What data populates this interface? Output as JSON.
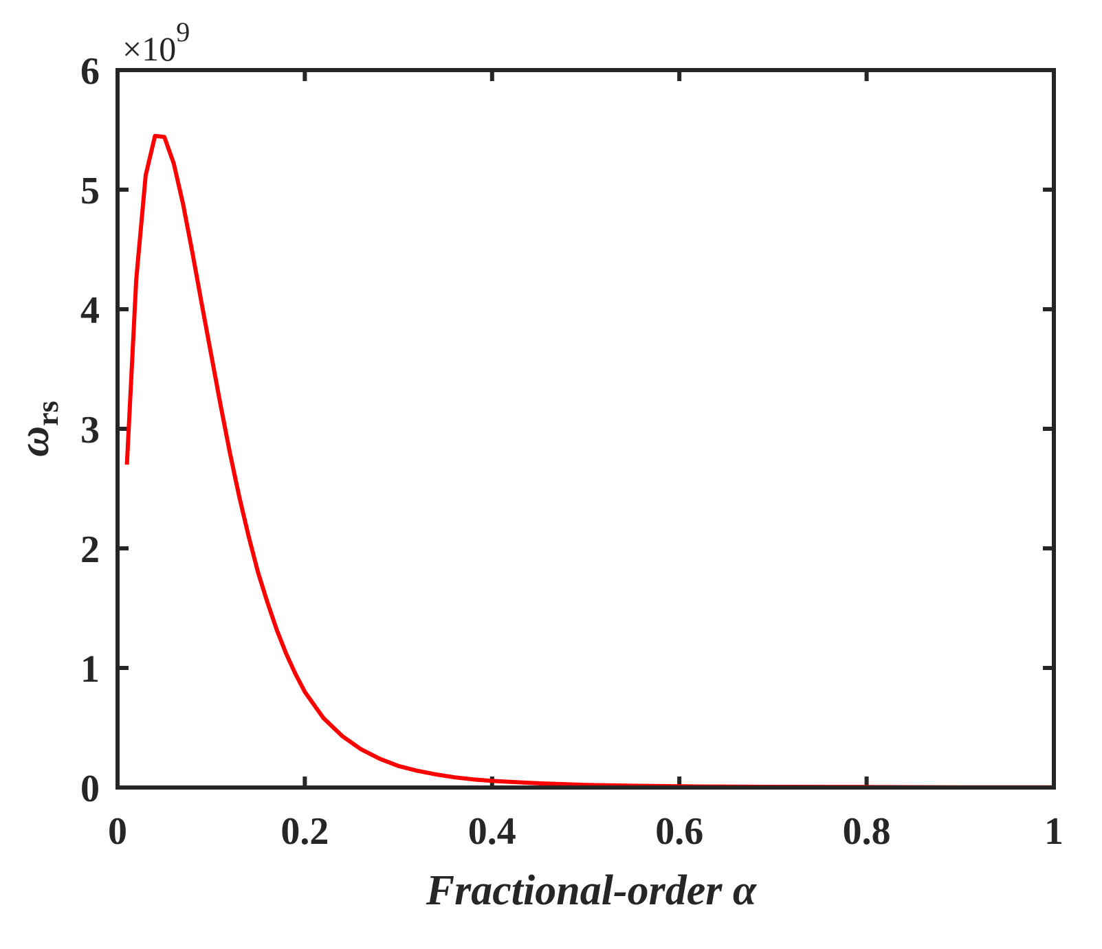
{
  "chart_data": {
    "type": "line",
    "xlabel": "Fractional-order α",
    "ylabel_symbol": "ω",
    "ylabel_subscript": "rs",
    "y_exponent_label": "×10",
    "y_exponent_power": "9",
    "xlim": [
      0,
      1
    ],
    "ylim": [
      0,
      6
    ],
    "xticks": [
      0,
      0.2,
      0.4,
      0.6,
      0.8,
      1
    ],
    "xtick_labels": [
      "0",
      "0.2",
      "0.4",
      "0.6",
      "0.8",
      "1"
    ],
    "yticks": [
      0,
      1,
      2,
      3,
      4,
      5,
      6
    ],
    "ytick_labels": [
      "0",
      "1",
      "2",
      "3",
      "4",
      "5",
      "6"
    ],
    "grid": false,
    "series": [
      {
        "color": "#ff0000",
        "x": [
          0.01,
          0.02,
          0.03,
          0.04,
          0.05,
          0.06,
          0.07,
          0.08,
          0.09,
          0.1,
          0.11,
          0.12,
          0.13,
          0.14,
          0.15,
          0.16,
          0.17,
          0.18,
          0.19,
          0.2,
          0.22,
          0.24,
          0.26,
          0.28,
          0.3,
          0.32,
          0.34,
          0.36,
          0.38,
          0.4,
          0.45,
          0.5,
          0.55,
          0.6,
          0.7,
          0.8,
          0.9,
          1.0
        ],
        "values": [
          2.7,
          4.25,
          5.12,
          5.45,
          5.44,
          5.22,
          4.88,
          4.47,
          4.04,
          3.62,
          3.2,
          2.8,
          2.43,
          2.1,
          1.8,
          1.55,
          1.32,
          1.12,
          0.95,
          0.8,
          0.58,
          0.43,
          0.32,
          0.24,
          0.18,
          0.14,
          0.11,
          0.085,
          0.068,
          0.055,
          0.035,
          0.022,
          0.015,
          0.01,
          0.006,
          0.004,
          0.002,
          0.001
        ]
      }
    ]
  }
}
